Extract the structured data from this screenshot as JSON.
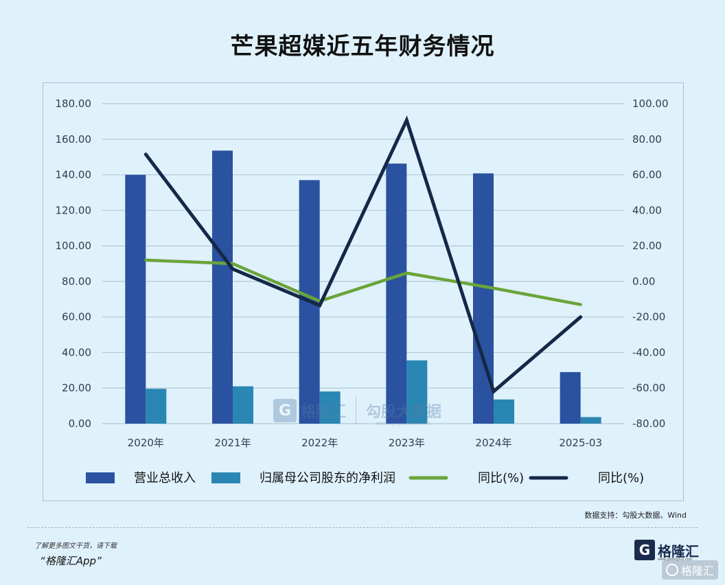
{
  "title": "芒果超媒近五年财务情况",
  "source": "数据支持：勾股大数据、Wind",
  "promo": {
    "line1": "了解更多图文干货，请下载",
    "line2": "“格隆汇App”"
  },
  "brand": {
    "logo": "G",
    "name": "格隆汇",
    "url": "www.gelonghui.com"
  },
  "corner_badge": {
    "text": "格隆汇"
  },
  "watermark": {
    "logo": "G",
    "name": "格隆汇",
    "name2": "勾股大数据",
    "url": "www.gogudata.com"
  },
  "colors": {
    "revenue": "#2a52a0",
    "net_profit": "#2a86b3",
    "yoy_revenue": "#6aa43a",
    "yoy_profit": "#152848",
    "grid": "#b5c8d4",
    "background": "#dff1fb"
  },
  "chart_data": {
    "type": "bar",
    "categories": [
      "2020年",
      "2021年",
      "2022年",
      "2023年",
      "2024年",
      "2025-03"
    ],
    "series": [
      {
        "name": "营业总收入",
        "type": "bar",
        "axis": "left",
        "values": [
          140.0,
          153.6,
          137.0,
          146.3,
          140.8,
          29.0
        ]
      },
      {
        "name": "归属母公司股东的净利润",
        "type": "bar",
        "axis": "left",
        "values": [
          19.6,
          21.0,
          18.1,
          35.6,
          13.6,
          3.7
        ]
      },
      {
        "name": "同比(%)",
        "type": "line",
        "axis": "right",
        "values": [
          12.0,
          10.0,
          -11.1,
          4.7,
          -3.8,
          -13.0
        ]
      },
      {
        "name": "同比(%)",
        "type": "line",
        "axis": "right",
        "values": [
          71.5,
          7.0,
          -13.5,
          90.7,
          -61.9,
          -20.0
        ]
      }
    ],
    "ylim_left": [
      0,
      180
    ],
    "ylim_right": [
      -80,
      100
    ],
    "yticks_left": [
      "0.00",
      "20.00",
      "40.00",
      "60.00",
      "80.00",
      "100.00",
      "120.00",
      "140.00",
      "160.00",
      "180.00"
    ],
    "yticks_right": [
      "-80.00",
      "-60.00",
      "-40.00",
      "-20.00",
      "0.00",
      "20.00",
      "40.00",
      "60.00",
      "80.00",
      "100.00"
    ],
    "grid": true,
    "legend": "bottom"
  }
}
